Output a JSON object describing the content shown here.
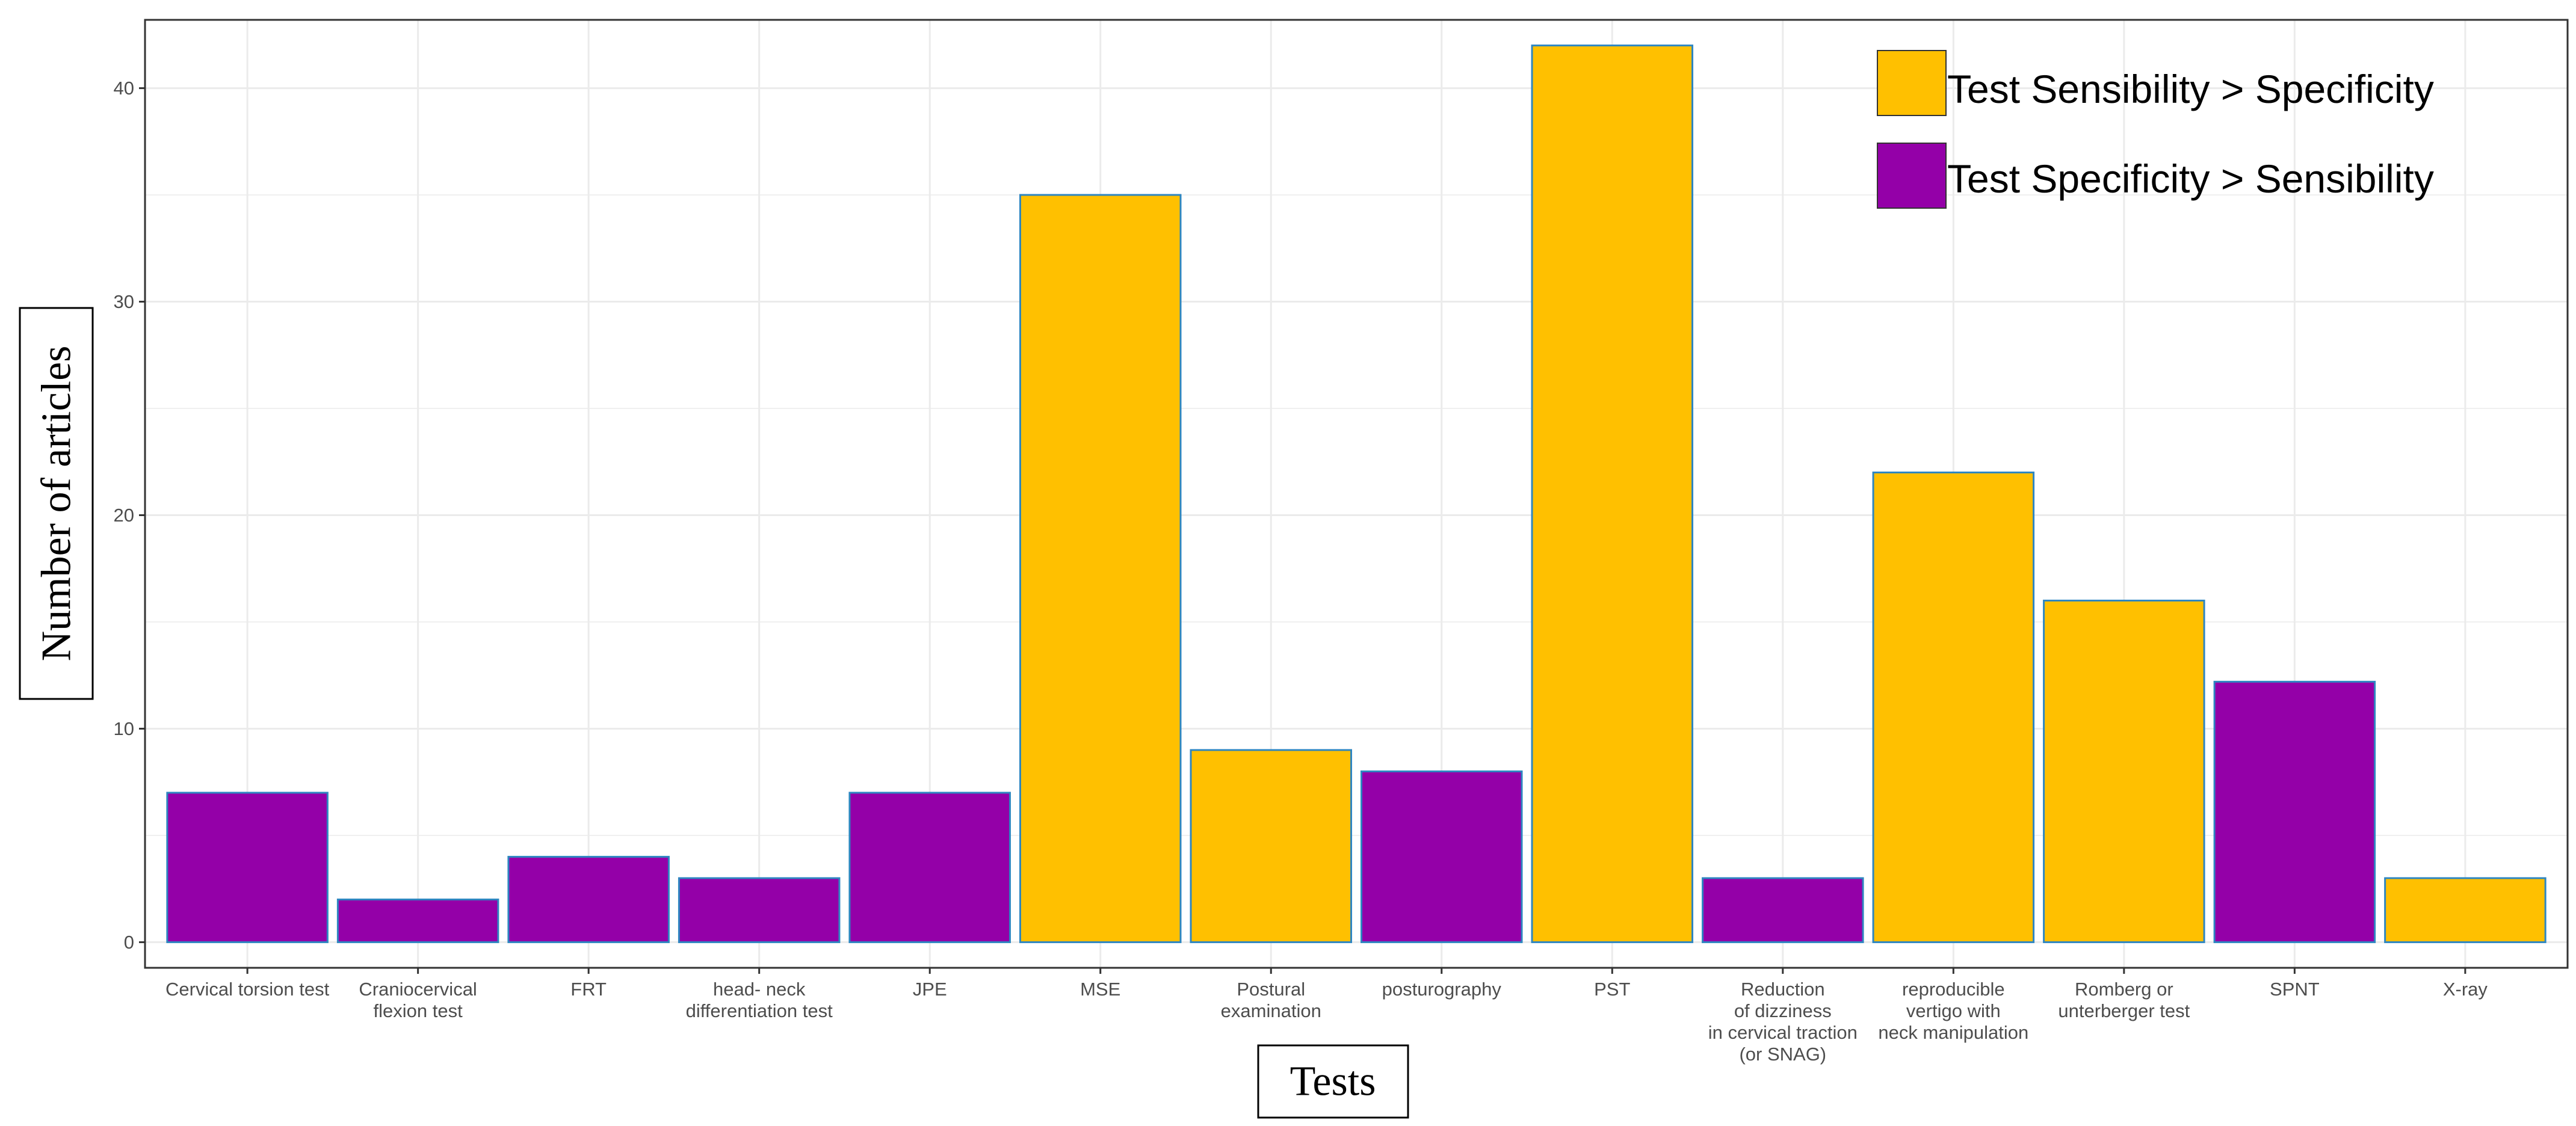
{
  "chart_data": {
    "type": "bar",
    "xlabel": "Tests",
    "ylabel": "Number of articles",
    "ylim": [
      -1.2,
      43.2
    ],
    "yticks": [
      0,
      10,
      20,
      30,
      40
    ],
    "grid": true,
    "legend_position": "top-right",
    "categories": [
      "Cervical torsion test",
      "Craniocervical flexion test",
      "FRT",
      "head- neck differentiation test",
      "JPE",
      "MSE",
      "Postural examination",
      "posturography",
      "PST",
      "Reduction of dizziness in cervical traction (or SNAG)",
      "reproducible vertigo with neck manipulation",
      "Romberg or unterberger test",
      "SPNT",
      "X-ray"
    ],
    "category_lines": [
      [
        "Cervical torsion test"
      ],
      [
        "Craniocervical",
        "flexion test"
      ],
      [
        "FRT"
      ],
      [
        "head- neck",
        "differentiation test"
      ],
      [
        "JPE"
      ],
      [
        "MSE"
      ],
      [
        "Postural",
        "examination"
      ],
      [
        "posturography"
      ],
      [
        "PST"
      ],
      [
        "Reduction",
        "of dizziness",
        "in cervical traction",
        "(or SNAG)"
      ],
      [
        "reproducible",
        "vertigo with",
        "neck manipulation"
      ],
      [
        "Romberg or",
        "unterberger test"
      ],
      [
        "SPNT"
      ],
      [
        "X-ray"
      ]
    ],
    "values": [
      7,
      2,
      4,
      3,
      7,
      35,
      9,
      8,
      42,
      3,
      22,
      16,
      12.2,
      3
    ],
    "groups": [
      "spec",
      "spec",
      "spec",
      "spec",
      "spec",
      "sens",
      "sens",
      "spec",
      "sens",
      "spec",
      "sens",
      "sens",
      "spec",
      "sens"
    ],
    "series": [
      {
        "key": "sens",
        "name": "Test Sensibility > Specificity",
        "color": "#FFC000"
      },
      {
        "key": "spec",
        "name": "Test Specificity > Sensibility",
        "color": "#9400A8"
      }
    ],
    "bar_outline_color": "#2E86C1"
  }
}
